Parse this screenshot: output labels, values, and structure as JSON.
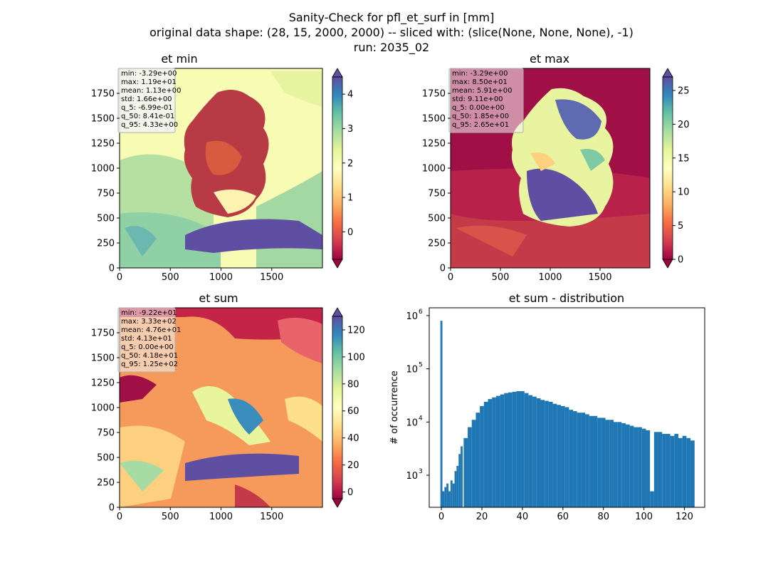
{
  "figure": {
    "title_line1": "Sanity-Check for pfl_et_surf in [mm]",
    "title_line2": "original data shape: (28, 15, 2000, 2000) -- sliced with: (slice(None, None, None), -1)",
    "title_line3": "run: 2035_02"
  },
  "palette": {
    "spectral": [
      "#9e0142",
      "#d53e4f",
      "#f46d43",
      "#fdae61",
      "#fee08b",
      "#ffffbf",
      "#e6f598",
      "#abdda4",
      "#66c2a5",
      "#3288bd",
      "#5e4fa2"
    ],
    "hist_bar": "#1f77b4"
  },
  "panels": [
    {
      "title": "et min",
      "x_ticks": [
        "0",
        "500",
        "1000",
        "1500"
      ],
      "y_ticks": [
        "0",
        "250",
        "500",
        "750",
        "1000",
        "1250",
        "1500",
        "1750"
      ],
      "cbar_ticks": [
        "0",
        "1",
        "2",
        "3",
        "4"
      ],
      "cbar_range": [
        -0.8,
        4.5
      ],
      "stats": [
        "min: -3.29e+00",
        "max: 1.19e+01",
        "mean: 1.13e+00",
        "std: 1.66e+00",
        "q_5: -6.99e-01",
        "q_50: 8.41e-01",
        "q_95: 4.33e+00"
      ]
    },
    {
      "title": "et max",
      "x_ticks": [
        "0",
        "500",
        "1000",
        "1500"
      ],
      "y_ticks": [
        "0",
        "250",
        "500",
        "750",
        "1000",
        "1250",
        "1500",
        "1750"
      ],
      "cbar_ticks": [
        "0",
        "5",
        "10",
        "15",
        "20",
        "25"
      ],
      "cbar_range": [
        0,
        27
      ],
      "stats": [
        "min: -3.29e+00",
        "max: 8.50e+01",
        "mean: 5.91e+00",
        "std: 9.11e+00",
        "q_5: 0.00e+00",
        "q_50: 1.85e+00",
        "q_95: 2.65e+01"
      ]
    },
    {
      "title": "et sum",
      "x_ticks": [
        "0",
        "500",
        "1000",
        "1500"
      ],
      "y_ticks": [
        "0",
        "250",
        "500",
        "750",
        "1000",
        "1250",
        "1500",
        "1750"
      ],
      "cbar_ticks": [
        "0",
        "20",
        "40",
        "60",
        "80",
        "100",
        "120"
      ],
      "cbar_range": [
        -5,
        130
      ],
      "stats": [
        "min: -9.22e+01",
        "max: 3.33e+02",
        "mean: 4.76e+01",
        "std: 4.13e+01",
        "q_5: 0.00e+00",
        "q_50: 4.18e+01",
        "q_95: 1.25e+02"
      ]
    }
  ],
  "chart_data": {
    "type": "bar",
    "title": "et sum - distribution",
    "xlabel": "",
    "ylabel": "# of occurrence",
    "y_scale": "log",
    "x_ticks": [
      "0",
      "20",
      "40",
      "60",
      "80",
      "100",
      "120"
    ],
    "y_ticks": [
      {
        "base": "10",
        "exp": "3"
      },
      {
        "base": "10",
        "exp": "4"
      },
      {
        "base": "10",
        "exp": "5"
      },
      {
        "base": "10",
        "exp": "6"
      }
    ],
    "xlim": [
      -6,
      130
    ],
    "ylim": [
      250,
      1400000
    ],
    "bin_centers": [
      0,
      1,
      2,
      3,
      4,
      5,
      6,
      7,
      8,
      9,
      10,
      12,
      14,
      16,
      18,
      20,
      22,
      24,
      26,
      28,
      30,
      32,
      34,
      36,
      38,
      40,
      42,
      44,
      46,
      48,
      50,
      52,
      54,
      56,
      58,
      60,
      62,
      64,
      66,
      68,
      70,
      72,
      74,
      76,
      78,
      80,
      82,
      84,
      86,
      88,
      90,
      92,
      94,
      96,
      98,
      100,
      102,
      104,
      106,
      108,
      110,
      112,
      114,
      116,
      118,
      120,
      122,
      124
    ],
    "counts": [
      800000,
      500,
      600,
      700,
      500,
      800,
      700,
      1200,
      1500,
      2500,
      3500,
      5000,
      8000,
      11000,
      15000,
      20000,
      24000,
      27000,
      29000,
      31000,
      33000,
      35000,
      36000,
      37000,
      38000,
      38000,
      35000,
      32000,
      30000,
      28000,
      26000,
      25000,
      24000,
      22000,
      21000,
      20000,
      19000,
      17000,
      16000,
      15000,
      15000,
      14000,
      13000,
      13000,
      12000,
      12000,
      11000,
      11000,
      10000,
      10000,
      9500,
      9000,
      8500,
      8000,
      8000,
      7500,
      7000,
      500,
      6500,
      6500,
      6000,
      6000,
      5500,
      6000,
      5000,
      5500,
      5000,
      4500
    ]
  }
}
